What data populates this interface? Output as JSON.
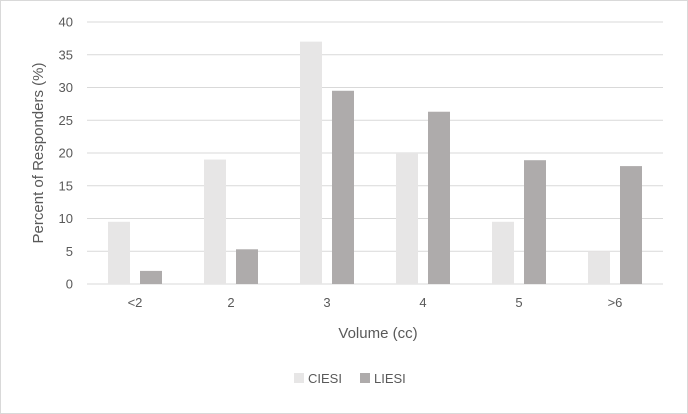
{
  "chart_data": {
    "type": "bar",
    "title": "",
    "xlabel": "Volume (cc)",
    "ylabel": "Percent of Responders (%)",
    "categories": [
      "<2",
      "2",
      "3",
      "4",
      "5",
      ">6"
    ],
    "series": [
      {
        "name": "CIESI",
        "color": "#e7e6e6",
        "values": [
          9.5,
          19,
          37,
          20,
          9.5,
          5
        ]
      },
      {
        "name": "LIESI",
        "color": "#aeabab",
        "values": [
          2,
          5.3,
          29.5,
          26.3,
          18.9,
          18
        ]
      }
    ],
    "ylim": [
      0,
      40
    ],
    "yticks": [
      0,
      5,
      10,
      15,
      20,
      25,
      30,
      35,
      40
    ],
    "grid": true,
    "legend_position": "bottom"
  }
}
